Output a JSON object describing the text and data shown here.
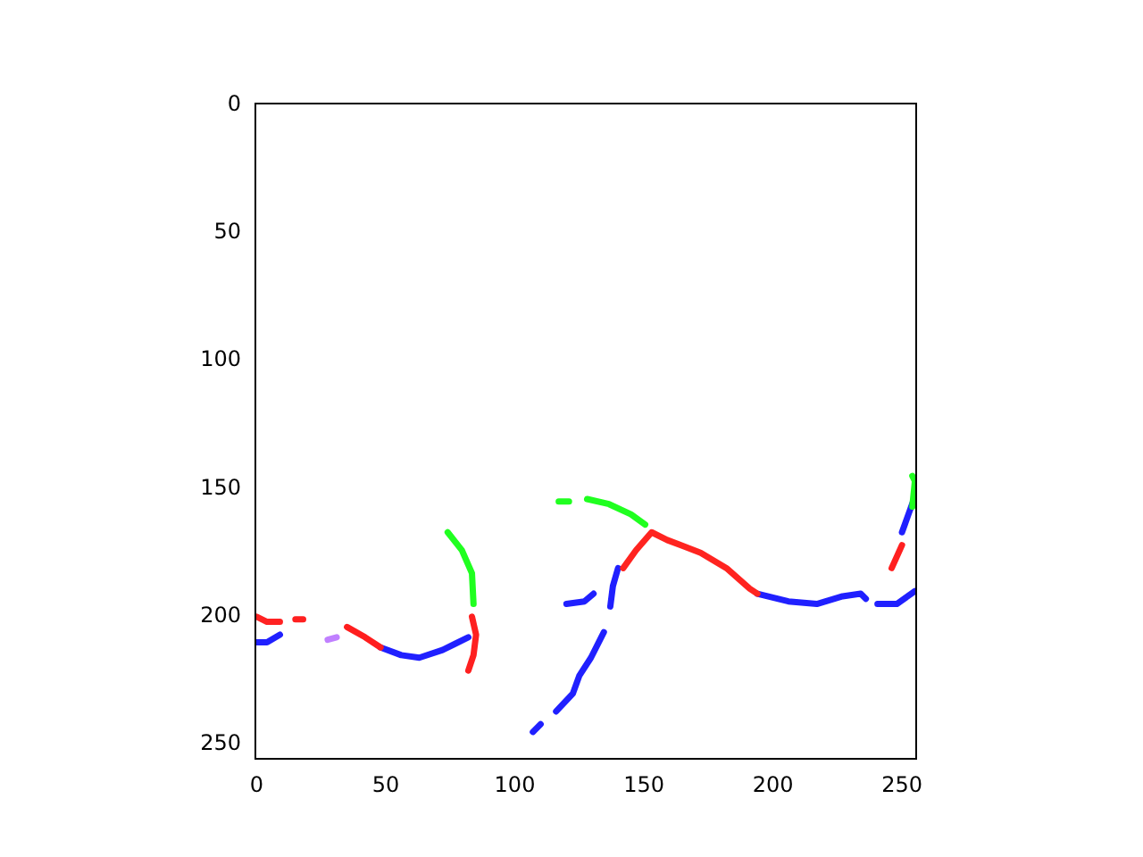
{
  "chart_data": {
    "type": "line",
    "xlim": [
      -0.5,
      255.5
    ],
    "ylim": [
      255.5,
      -0.5
    ],
    "xticks": [
      0,
      50,
      100,
      150,
      200,
      250
    ],
    "yticks": [
      0,
      50,
      100,
      150,
      200,
      250
    ],
    "grid": false,
    "legend": false,
    "marker": "none",
    "line_style": "solid",
    "series": [
      {
        "color": "#ff2222",
        "x": [
          0,
          4,
          9
        ],
        "values": [
          200,
          202,
          202
        ]
      },
      {
        "color": "#ff2020",
        "x": [
          15,
          18
        ],
        "values": [
          201,
          201
        ]
      },
      {
        "color": "#ff1e1e",
        "x": [
          35,
          42,
          48
        ],
        "values": [
          204,
          208,
          212
        ]
      },
      {
        "color": "#fe2020",
        "x": [
          83.4,
          85,
          84,
          82
        ],
        "values": [
          200,
          207,
          215,
          221
        ]
      },
      {
        "color": "#ff2420",
        "x": [
          142,
          147,
          153,
          159,
          172,
          182,
          191,
          194
        ],
        "values": [
          181,
          174,
          167,
          170,
          175,
          181,
          189,
          191
        ]
      },
      {
        "color": "#ff2020",
        "x": [
          246,
          250
        ],
        "values": [
          181,
          172
        ]
      },
      {
        "color": "#20ff20",
        "x": [
          74,
          79.5,
          83.4,
          84
        ],
        "values": [
          167,
          174,
          183,
          195
        ]
      },
      {
        "color": "#20ff20",
        "x": [
          117,
          121
        ],
        "values": [
          155,
          155
        ]
      },
      {
        "color": "#20ff20",
        "x": [
          128,
          136.5,
          145,
          150.5
        ],
        "values": [
          154,
          156,
          160,
          164
        ]
      },
      {
        "color": "#20ff20",
        "x": [
          254,
          255,
          254
        ],
        "values": [
          145,
          147,
          157
        ]
      },
      {
        "color": "#2020ff",
        "x": [
          0,
          4,
          9
        ],
        "values": [
          210,
          210,
          207
        ]
      },
      {
        "color": "#2020ff",
        "x": [
          48,
          56,
          63,
          72,
          82
        ],
        "values": [
          212,
          215,
          216,
          213,
          208
        ]
      },
      {
        "color": "#2020ff",
        "x": [
          120,
          127,
          130.5
        ],
        "values": [
          195,
          194,
          191
        ]
      },
      {
        "color": "#2020ff",
        "x": [
          107,
          110
        ],
        "values": [
          245,
          242
        ]
      },
      {
        "color": "#2020ff",
        "x": [
          116,
          122.5,
          125,
          129.5,
          134.5
        ],
        "values": [
          237,
          230,
          223,
          216,
          206
        ]
      },
      {
        "color": "#2020ff",
        "x": [
          137,
          138,
          140
        ],
        "values": [
          196,
          188,
          181
        ]
      },
      {
        "color": "#2020ff",
        "x": [
          194,
          206,
          217,
          227,
          234,
          236
        ],
        "values": [
          191,
          194,
          195,
          192,
          191,
          193
        ]
      },
      {
        "color": "#2020ff",
        "x": [
          240.5,
          248,
          255
        ],
        "values": [
          195,
          195,
          190
        ]
      },
      {
        "color": "#2020ff",
        "x": [
          250,
          252.5,
          255
        ],
        "values": [
          167,
          160,
          153
        ]
      },
      {
        "color": "#c080ff",
        "x": [
          27.5,
          31
        ],
        "values": [
          209,
          208
        ]
      }
    ]
  }
}
